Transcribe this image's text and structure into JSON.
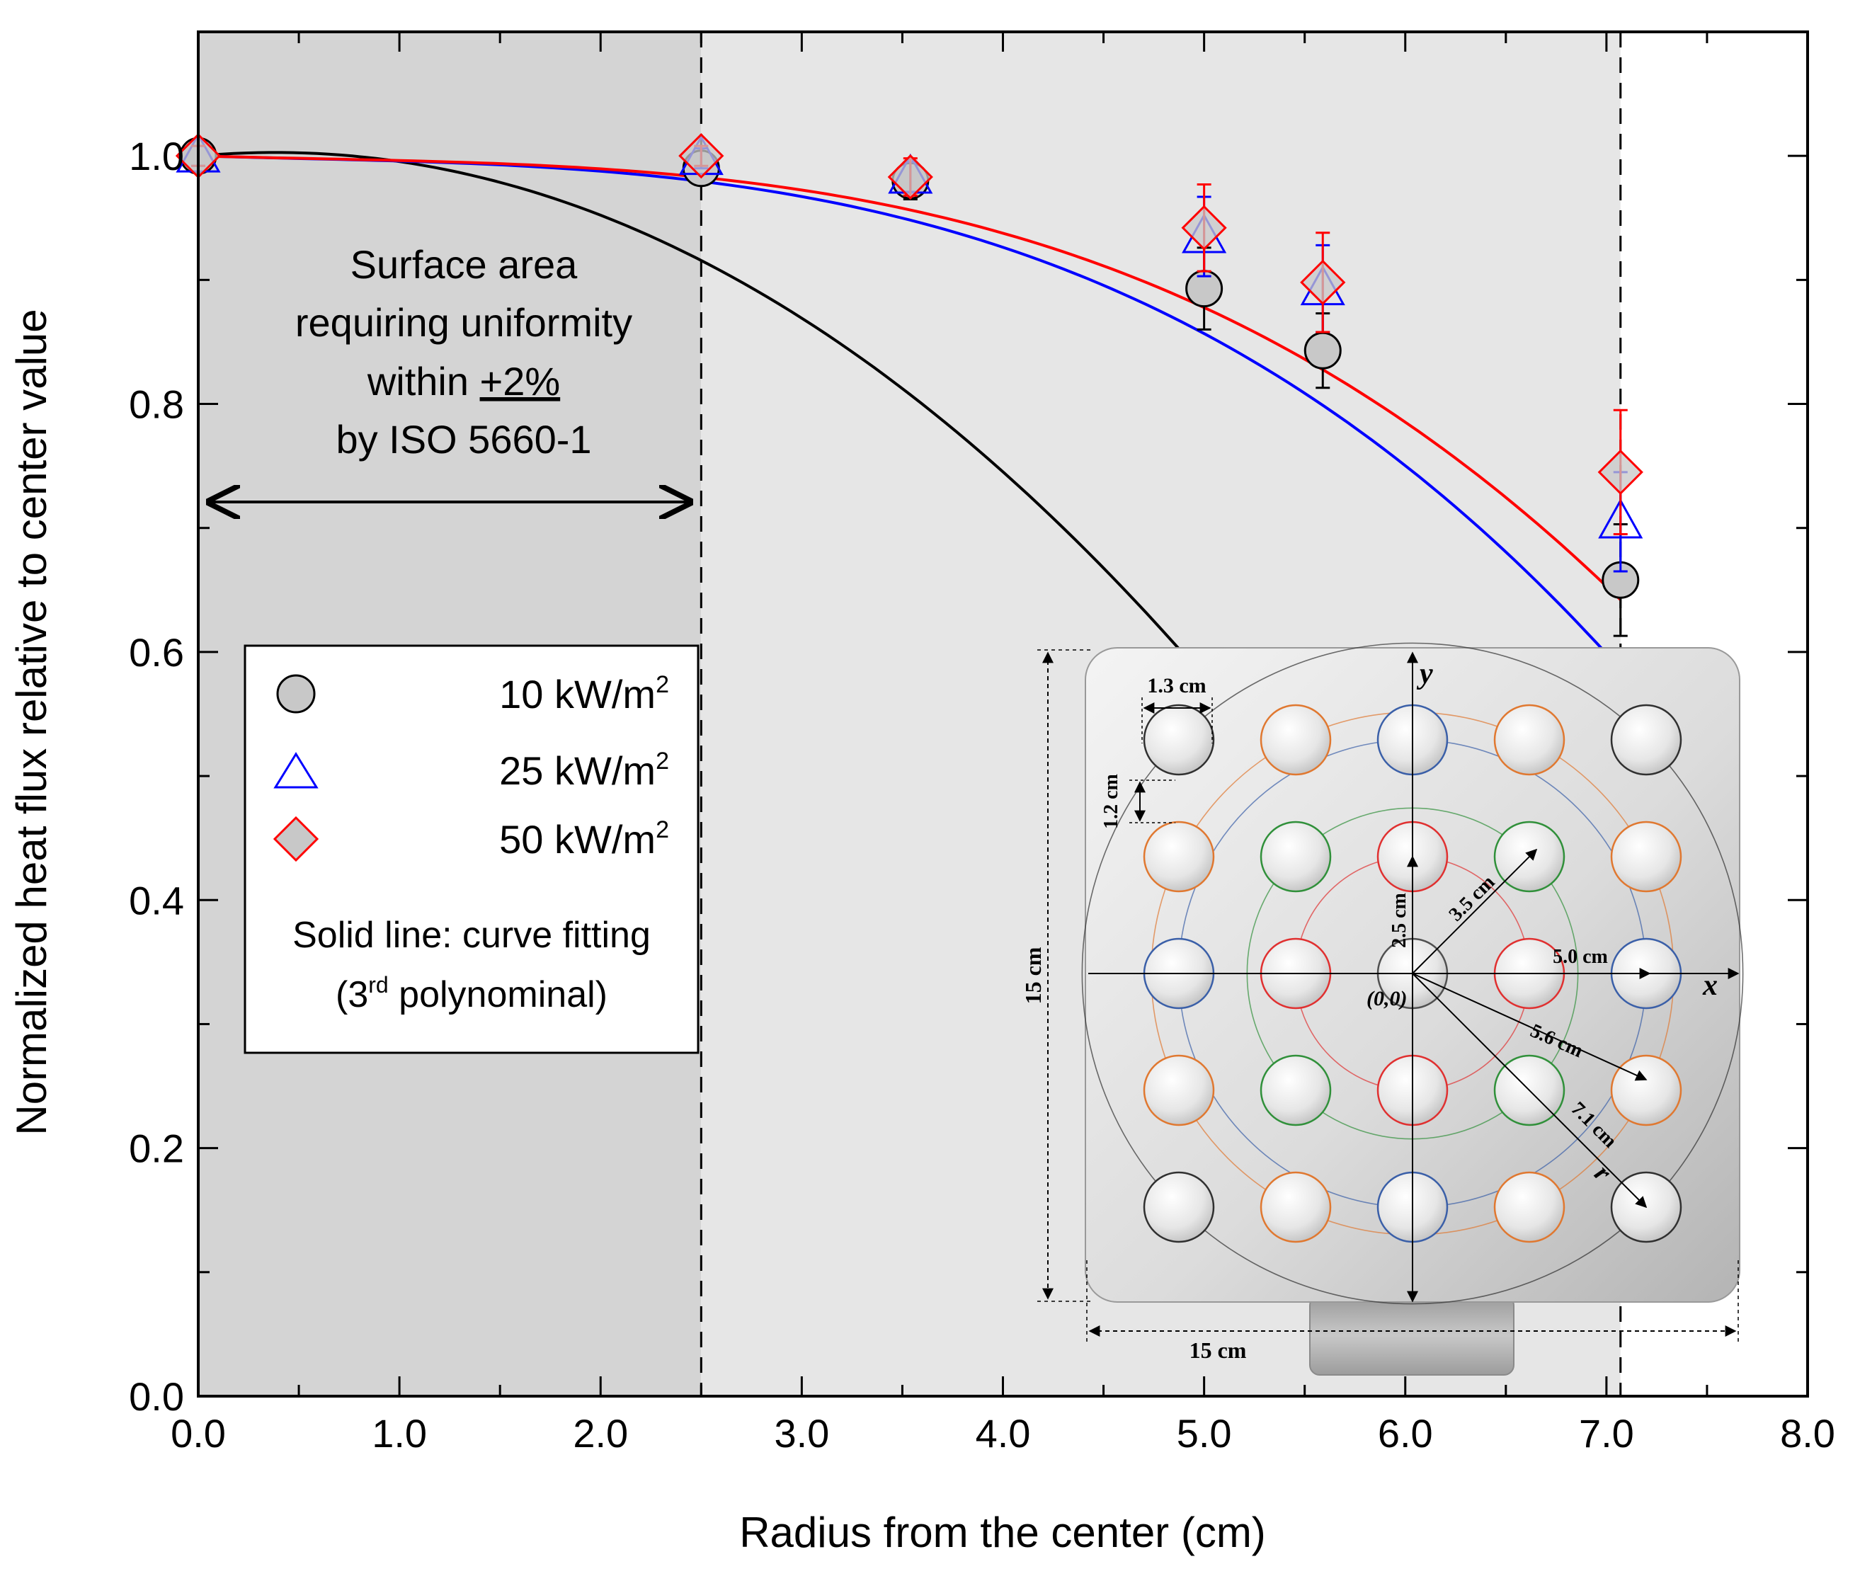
{
  "chart_data": {
    "type": "line",
    "xlabel": "Radius from the center (cm)",
    "ylabel": "Normalized heat flux relative to center value",
    "xlim": [
      0.0,
      8.0
    ],
    "ylim": [
      0.0,
      1.1
    ],
    "x_ticks": [
      "0.0",
      "1.0",
      "2.0",
      "3.0",
      "4.0",
      "5.0",
      "6.0",
      "7.0",
      "8.0"
    ],
    "y_ticks": [
      "0.0",
      "0.2",
      "0.4",
      "0.6",
      "0.8",
      "1.0"
    ],
    "x_tick_values": [
      0,
      1,
      2,
      3,
      4,
      5,
      6,
      7,
      8
    ],
    "y_tick_values": [
      0,
      0.2,
      0.4,
      0.6,
      0.8,
      1.0
    ],
    "region_boundaries": [
      2.5,
      7.07
    ],
    "series": [
      {
        "name": "10 kW/m",
        "sup": "2",
        "marker": "circle",
        "color": "#000000",
        "fill": "#c8c8c8",
        "x": [
          0,
          2.5,
          3.54,
          5.0,
          5.59,
          7.07
        ],
        "y": [
          1.0,
          0.99,
          0.98,
          0.893,
          0.843,
          0.658
        ],
        "err": [
          0.01,
          0.01,
          0.015,
          0.033,
          0.03,
          0.045
        ],
        "fit": [
          1.0,
          0.0144,
          -0.0188,
          -0.00018
        ]
      },
      {
        "name": "25 kW/m",
        "sup": "2",
        "marker": "triangle",
        "color": "#0000ff",
        "fill": "#c8c8c8",
        "x": [
          0,
          2.5,
          3.54,
          5.0,
          5.59,
          7.07
        ],
        "y": [
          1.0,
          0.998,
          0.983,
          0.935,
          0.893,
          0.705
        ],
        "err": [
          0.008,
          0.008,
          0.012,
          0.032,
          0.035,
          0.04
        ],
        "fit": [
          1.0,
          -0.0049,
          0.0021,
          -0.00137
        ]
      },
      {
        "name": "50 kW/m",
        "sup": "2",
        "marker": "diamond",
        "color": "#ff0000",
        "fill": "#c8c8c8",
        "x": [
          0,
          2.5,
          3.54,
          5.0,
          5.59,
          7.07
        ],
        "y": [
          1.0,
          1.0,
          0.983,
          0.942,
          0.898,
          0.745
        ],
        "err": [
          0.008,
          0.008,
          0.015,
          0.035,
          0.04,
          0.05
        ],
        "fit": [
          1.0,
          -0.0047,
          0.0022,
          -0.00123
        ]
      }
    ],
    "annotation": {
      "lines": [
        "Surface area",
        "requiring uniformity",
        "within ",
        "by ISO 5660-1"
      ],
      "pm_value": "+2%",
      "range_start": 0.0,
      "range_end": 2.5
    },
    "legend": {
      "placement": "left-center",
      "note_line1": "Solid line: curve fitting",
      "note_pre": "(3",
      "note_sup": "rd",
      "note_post": " polynominal)"
    },
    "colors": {
      "inner_region": "#d4d4d4",
      "outer_region": "#e6e6e6"
    }
  },
  "inset": {
    "axis_y": "y",
    "axis_x": "x",
    "axis_r": "r",
    "origin_label": "(0,0)",
    "dim_hole": "1.3 cm",
    "dim_gap": "1.2 cm",
    "dim_side_v": "15 cm",
    "dim_side_h": "15 cm",
    "r1": "2.5 cm",
    "r2": "3.5 cm",
    "r3": "5.0 cm",
    "r4": "5.6 cm",
    "r5": "7.1 cm",
    "ring_colors": {
      "center": "#505050",
      "r25": "#e03030",
      "r35": "#30903a",
      "r50": "#3a5fa8",
      "r56": "#e07830",
      "r71": "#303030"
    }
  }
}
